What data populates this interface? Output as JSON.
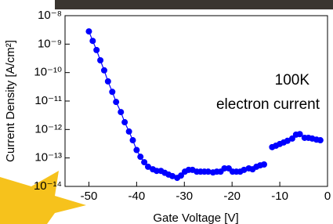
{
  "chart_data": {
    "type": "line",
    "x_label": "Gate Voltage [V]",
    "y_label": "Current Density [A/cm²]",
    "annotations": [
      "100K",
      "electron current"
    ],
    "log_y": true,
    "xlim": [
      -55,
      0
    ],
    "xticks": [
      -50,
      -40,
      -30,
      -20,
      -10,
      0
    ],
    "ylim": [
      1e-14,
      1e-08
    ],
    "yticks": [
      {
        "value": 1e-14,
        "label": "10⁻¹⁴"
      },
      {
        "value": 1e-13,
        "label": "10⁻¹³"
      },
      {
        "value": 1e-12,
        "label": "10⁻¹²"
      },
      {
        "value": 1e-11,
        "label": "10⁻¹¹"
      },
      {
        "value": 1e-10,
        "label": "10⁻¹⁰"
      },
      {
        "value": 1e-09,
        "label": "10⁻⁹"
      },
      {
        "value": 1e-08,
        "label": "10⁻⁸"
      }
    ],
    "series": [
      {
        "color": "#0000ff",
        "x": [
          -50,
          -49.2,
          -48.4,
          -47.6,
          -46.8,
          -46.0,
          -45.1,
          -44.3,
          -43.3,
          -42.5,
          -41.6,
          -40.8,
          -40.0,
          -39.2,
          -38.4,
          -37.6,
          -36.6,
          -35.8,
          -34.9,
          -34.1,
          -33.3,
          -32.5,
          -31.5,
          -30.7,
          -29.9,
          -29.1,
          -28.3,
          -27.4,
          -26.6,
          -25.8,
          -25.0,
          -24.0,
          -23.2,
          -22.4,
          -21.6,
          -20.7,
          -19.9,
          -19.1,
          -18.3,
          -17.5,
          -16.5,
          -15.7,
          -14.9,
          -14.1,
          -13.3,
          -12.5,
          -11.6,
          -10.8,
          -10.0,
          -9.2,
          -8.4,
          -7.4,
          -6.6,
          -5.8,
          -4.8,
          -4.0,
          -3.2,
          -2.3,
          -1.5
        ],
        "values": [
          2.8e-09,
          1.3e-09,
          6.2e-10,
          2.7e-10,
          1.2e-10,
          4.9e-11,
          2.1e-11,
          9.3e-12,
          4.1e-12,
          1.8e-12,
          8.5e-13,
          4.2e-13,
          1.9e-13,
          1.1e-13,
          7.1e-14,
          4.9e-14,
          4e-14,
          3.5e-14,
          3.5e-14,
          3e-14,
          2.6e-14,
          2.3e-14,
          2e-14,
          2.4e-14,
          3.3e-14,
          3.8e-14,
          3.8e-14,
          3.3e-14,
          3.3e-14,
          3.3e-14,
          3.3e-14,
          3.1e-14,
          3.3e-14,
          3.3e-14,
          4.3e-14,
          4.3e-14,
          3.3e-14,
          3.3e-14,
          3.3e-14,
          3.8e-14,
          4.3e-14,
          4e-14,
          4.9e-14,
          5.5e-14,
          5.9e-14,
          null,
          2.4e-13,
          2.7e-13,
          3.1e-13,
          3.5e-13,
          4e-13,
          4.8e-13,
          6.6e-13,
          6.9e-13,
          5.1e-13,
          5.1e-13,
          4.8e-13,
          4.4e-13,
          4.2e-13
        ]
      }
    ]
  }
}
